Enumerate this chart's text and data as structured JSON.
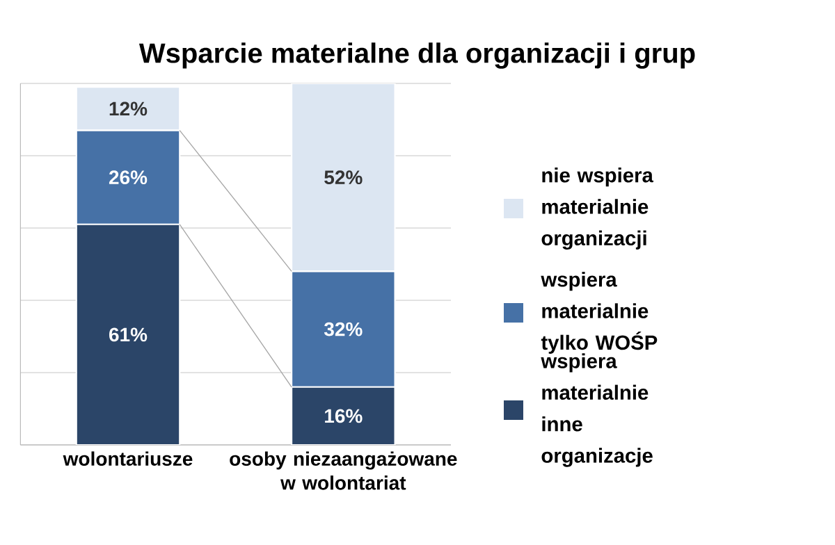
{
  "chart_data": {
    "type": "bar",
    "stacked": true,
    "title": "Wsparcie materialne dla organizacji i grup",
    "categories": [
      "wolontariusze",
      "osoby niezaangażowane w wolontariat"
    ],
    "series": [
      {
        "name": "wspiera materialnie inne organizacje",
        "color": "#2b4568",
        "values": [
          61,
          16
        ],
        "value_labels": [
          "61%",
          "16%"
        ]
      },
      {
        "name": "wspiera materialnie tylko WOŚP",
        "color": "#4671a6",
        "values": [
          26,
          32
        ],
        "value_labels": [
          "26%",
          "32%"
        ]
      },
      {
        "name": "nie wspiera materialnie organizacji",
        "color": "#dce6f2",
        "values": [
          12,
          52
        ],
        "value_labels": [
          "12%",
          "52%"
        ]
      }
    ],
    "tick_labels": "x",
    "grid": "y",
    "legend": "right"
  }
}
